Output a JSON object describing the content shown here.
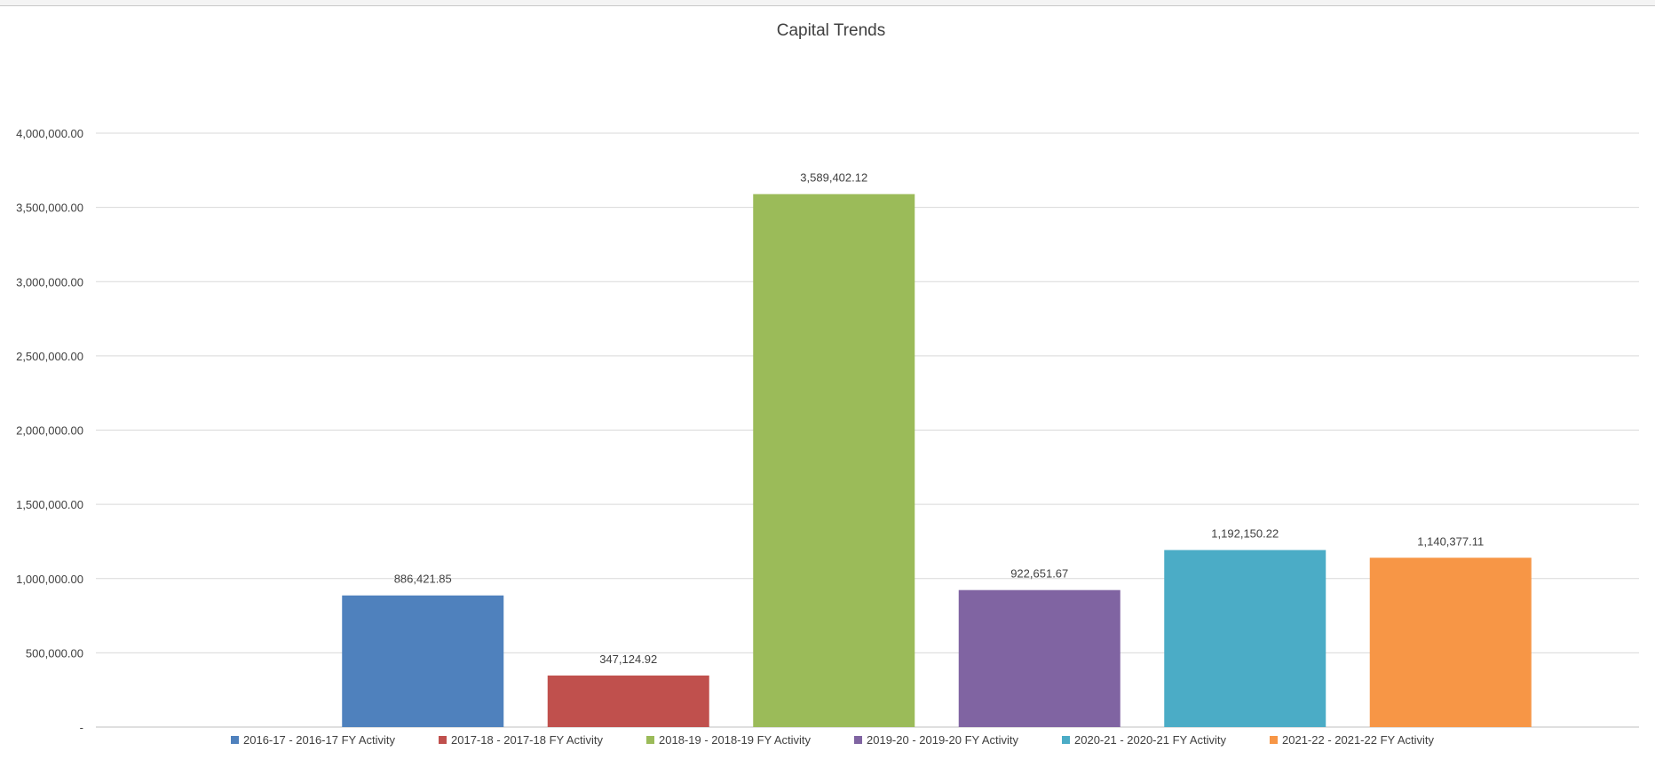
{
  "chart_data": {
    "type": "bar",
    "title": "Capital Trends",
    "xlabel": "",
    "ylabel": "",
    "ylim": [
      0,
      4000000
    ],
    "yticks": [
      {
        "value": 0,
        "label": "-"
      },
      {
        "value": 500000,
        "label": "500,000.00"
      },
      {
        "value": 1000000,
        "label": "1,000,000.00"
      },
      {
        "value": 1500000,
        "label": "1,500,000.00"
      },
      {
        "value": 2000000,
        "label": "2,000,000.00"
      },
      {
        "value": 2500000,
        "label": "2,500,000.00"
      },
      {
        "value": 3000000,
        "label": "3,000,000.00"
      },
      {
        "value": 3500000,
        "label": "3,500,000.00"
      },
      {
        "value": 4000000,
        "label": "4,000,000.00"
      }
    ],
    "grid": true,
    "legend_position": "bottom",
    "series": [
      {
        "name": "2016-17 - 2016-17 FY Activity",
        "value": 886421.85,
        "label": "886,421.85",
        "color": "#4F81BD"
      },
      {
        "name": "2017-18 - 2017-18 FY Activity",
        "value": 347124.92,
        "label": "347,124.92",
        "color": "#C0504D"
      },
      {
        "name": "2018-19 - 2018-19 FY Activity",
        "value": 3589402.12,
        "label": "3,589,402.12",
        "color": "#9BBB59"
      },
      {
        "name": "2019-20 - 2019-20 FY Activity",
        "value": 922651.67,
        "label": "922,651.67",
        "color": "#8064A2"
      },
      {
        "name": "2020-21 - 2020-21 FY Activity",
        "value": 1192150.22,
        "label": "1,192,150.22",
        "color": "#4BACC6"
      },
      {
        "name": "2021-22 - 2021-22 FY Activity",
        "value": 1140377.11,
        "label": "1,140,377.11",
        "color": "#F79646"
      }
    ]
  }
}
